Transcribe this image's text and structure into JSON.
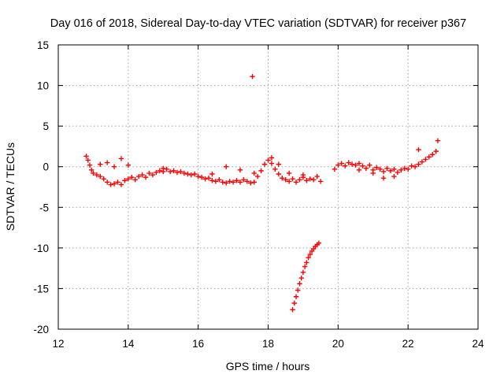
{
  "chart_data": {
    "type": "scatter",
    "title": "Day 016 of 2018, Sidereal Day-to-day VTEC variation (SDTVAR) for receiver p367",
    "xlabel": "GPS time / hours",
    "ylabel": "SDTVAR / TECUs",
    "xlim": [
      12,
      24
    ],
    "ylim": [
      -20,
      15
    ],
    "xticks": [
      "12",
      "14",
      "16",
      "18",
      "20",
      "22",
      "24"
    ],
    "yticks": [
      "15",
      "10",
      "5",
      "0",
      "-5",
      "-10",
      "-15",
      "-20"
    ],
    "grid": true,
    "marker": "plus",
    "color": "#ff0000",
    "series": [
      {
        "points": [
          [
            12.8,
            1.3
          ],
          [
            12.85,
            0.8
          ],
          [
            12.9,
            0.2
          ],
          [
            12.95,
            -0.4
          ],
          [
            13.0,
            -0.8
          ],
          [
            13.1,
            -1.0
          ],
          [
            13.2,
            -1.2
          ],
          [
            13.3,
            -1.5
          ],
          [
            13.4,
            -1.9
          ],
          [
            13.5,
            -2.2
          ],
          [
            13.6,
            -2.1
          ],
          [
            13.7,
            -1.9
          ],
          [
            13.8,
            -2.2
          ],
          [
            13.9,
            -1.7
          ],
          [
            14.0,
            -1.5
          ],
          [
            14.1,
            -1.3
          ],
          [
            14.2,
            -1.6
          ],
          [
            14.3,
            -1.2
          ],
          [
            14.4,
            -1.0
          ],
          [
            14.5,
            -1.3
          ],
          [
            14.6,
            -0.8
          ],
          [
            14.7,
            -1.0
          ],
          [
            14.8,
            -0.7
          ],
          [
            14.9,
            -0.5
          ],
          [
            15.0,
            -0.6
          ],
          [
            15.1,
            -0.3
          ],
          [
            15.2,
            -0.6
          ],
          [
            15.3,
            -0.5
          ],
          [
            15.4,
            -0.7
          ],
          [
            15.5,
            -0.6
          ],
          [
            15.6,
            -0.8
          ],
          [
            15.7,
            -0.9
          ],
          [
            15.8,
            -1.0
          ],
          [
            15.9,
            -0.9
          ],
          [
            16.0,
            -1.2
          ],
          [
            16.1,
            -1.3
          ],
          [
            16.2,
            -1.5
          ],
          [
            16.3,
            -1.4
          ],
          [
            16.4,
            -1.7
          ],
          [
            16.5,
            -1.8
          ],
          [
            16.6,
            -1.6
          ],
          [
            16.7,
            -1.9
          ],
          [
            16.8,
            -2.0
          ],
          [
            16.9,
            -1.8
          ],
          [
            17.0,
            -1.9
          ],
          [
            17.1,
            -1.7
          ],
          [
            17.2,
            -1.9
          ],
          [
            17.3,
            -1.6
          ],
          [
            17.4,
            -1.8
          ],
          [
            17.5,
            -2.0
          ],
          [
            17.6,
            -1.9
          ],
          [
            17.7,
            -1.2
          ],
          [
            17.8,
            -0.5
          ],
          [
            17.9,
            0.3
          ],
          [
            18.0,
            0.8
          ],
          [
            18.1,
            0.4
          ],
          [
            18.2,
            -0.3
          ],
          [
            18.3,
            -0.9
          ],
          [
            18.4,
            -1.4
          ],
          [
            18.5,
            -1.6
          ],
          [
            18.6,
            -1.8
          ],
          [
            18.7,
            -1.5
          ],
          [
            18.8,
            -1.9
          ],
          [
            18.9,
            -1.6
          ],
          [
            19.0,
            -1.3
          ],
          [
            19.1,
            -1.7
          ],
          [
            19.2,
            -1.5
          ],
          [
            19.3,
            -1.6
          ],
          [
            19.4,
            -1.2
          ],
          [
            19.5,
            -1.8
          ],
          [
            19.9,
            -0.3
          ],
          [
            20.0,
            0.2
          ],
          [
            20.1,
            0.4
          ],
          [
            20.2,
            0.1
          ],
          [
            20.3,
            0.5
          ],
          [
            20.4,
            0.3
          ],
          [
            20.5,
            0.2
          ],
          [
            20.6,
            0.4
          ],
          [
            20.7,
            0.1
          ],
          [
            20.8,
            -0.2
          ],
          [
            20.9,
            0.2
          ],
          [
            21.0,
            -0.4
          ],
          [
            21.1,
            -0.1
          ],
          [
            21.2,
            -0.3
          ],
          [
            21.3,
            -0.6
          ],
          [
            21.4,
            -0.2
          ],
          [
            21.5,
            -0.5
          ],
          [
            21.6,
            -0.3
          ],
          [
            21.7,
            -0.7
          ],
          [
            21.8,
            -0.4
          ],
          [
            21.9,
            -0.2
          ],
          [
            22.0,
            -0.3
          ],
          [
            22.1,
            0.1
          ],
          [
            22.2,
            0.0
          ],
          [
            22.3,
            0.3
          ],
          [
            22.4,
            0.6
          ],
          [
            22.5,
            0.9
          ],
          [
            22.6,
            1.2
          ],
          [
            22.7,
            1.5
          ],
          [
            22.8,
            1.9
          ],
          [
            22.85,
            3.2
          ],
          [
            22.3,
            2.1
          ],
          [
            13.2,
            0.3
          ],
          [
            13.4,
            0.5
          ],
          [
            13.6,
            0.0
          ],
          [
            13.8,
            1.0
          ],
          [
            14.0,
            0.2
          ],
          [
            15.0,
            -0.2
          ],
          [
            16.4,
            -0.9
          ],
          [
            16.8,
            0.0
          ],
          [
            17.2,
            -0.4
          ],
          [
            17.6,
            -0.8
          ],
          [
            18.1,
            1.1
          ],
          [
            18.3,
            0.3
          ],
          [
            18.6,
            -0.8
          ],
          [
            19.0,
            -1.0
          ],
          [
            20.6,
            -0.4
          ],
          [
            21.0,
            -0.8
          ],
          [
            21.3,
            -1.4
          ],
          [
            21.6,
            -1.2
          ],
          [
            17.55,
            11.1
          ],
          [
            18.7,
            -17.6
          ],
          [
            18.75,
            -16.8
          ],
          [
            18.8,
            -16.0
          ],
          [
            18.85,
            -15.2
          ],
          [
            18.9,
            -14.4
          ],
          [
            18.95,
            -13.7
          ],
          [
            19.0,
            -13.0
          ],
          [
            19.05,
            -12.3
          ],
          [
            19.1,
            -11.8
          ],
          [
            19.15,
            -11.2
          ],
          [
            19.2,
            -10.8
          ],
          [
            19.25,
            -10.4
          ],
          [
            19.3,
            -10.1
          ],
          [
            19.35,
            -9.8
          ],
          [
            19.4,
            -9.6
          ],
          [
            19.45,
            -9.4
          ]
        ]
      }
    ]
  }
}
